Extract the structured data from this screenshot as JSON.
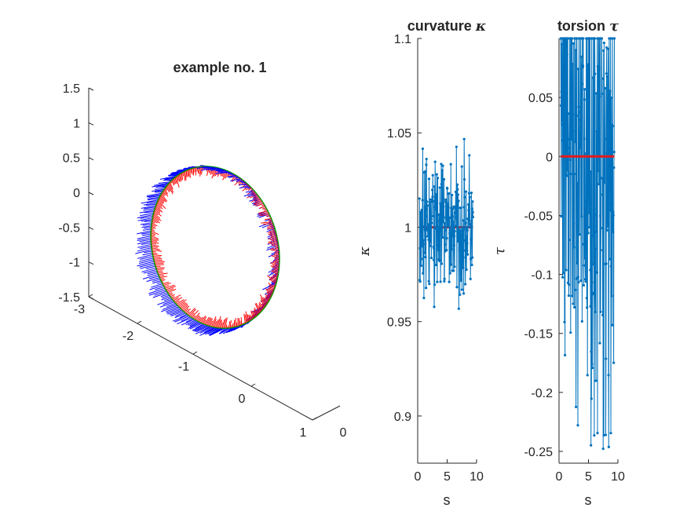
{
  "colors": {
    "background": "#ffffff",
    "axes": "#262626",
    "series": "#0072bd",
    "reference": "#e41a1c",
    "tangent": "#ff0000",
    "normal": "#00c000",
    "binormal": "#0000ff"
  },
  "chart_data": [
    {
      "type": "line3d",
      "title": "example no. 1",
      "zlim": [
        -1.5,
        1.5
      ],
      "z_ticks": [
        "1.5",
        "1",
        "0.5",
        "0",
        "-0.5",
        "-1",
        "-1.5"
      ],
      "x_ticks": [
        "-3",
        "-2",
        "-1",
        "0",
        "1"
      ],
      "y_ticks": [
        "0"
      ],
      "curve": {
        "shape": "circle",
        "radius": 1,
        "center": [
          -1,
          0,
          0
        ],
        "points": 300
      },
      "frame_vectors": [
        "tangent",
        "normal",
        "binormal"
      ]
    },
    {
      "type": "line",
      "title_text": "curvature ",
      "title_symbol": "κ",
      "xlabel": "s",
      "ylabel": "κ",
      "xlim": [
        0,
        10
      ],
      "ylim": [
        0.875,
        1.1
      ],
      "x_ticks": [
        "0",
        "5",
        "10"
      ],
      "y_ticks": [
        "1.1",
        "1.05",
        "1",
        "0.95",
        "0.9"
      ],
      "s_range": [
        0.3,
        9.4
      ],
      "samples": 230,
      "mean": 1.0,
      "reference": 1.0,
      "spread": 0.03
    },
    {
      "type": "line",
      "title_text": "torsion ",
      "title_symbol": "τ",
      "xlabel": "s",
      "ylabel": "τ",
      "xlim": [
        0,
        10
      ],
      "ylim": [
        -0.26,
        0.1
      ],
      "x_ticks": [
        "0",
        "5",
        "10"
      ],
      "y_ticks": [
        "0.05",
        "0",
        "-0.05",
        "-0.1",
        "-0.15",
        "-0.2",
        "-0.25"
      ],
      "s_range": [
        0.3,
        9.4
      ],
      "samples": 230,
      "mean": 0.0,
      "reference": 0.0,
      "spread": 0.2
    }
  ]
}
